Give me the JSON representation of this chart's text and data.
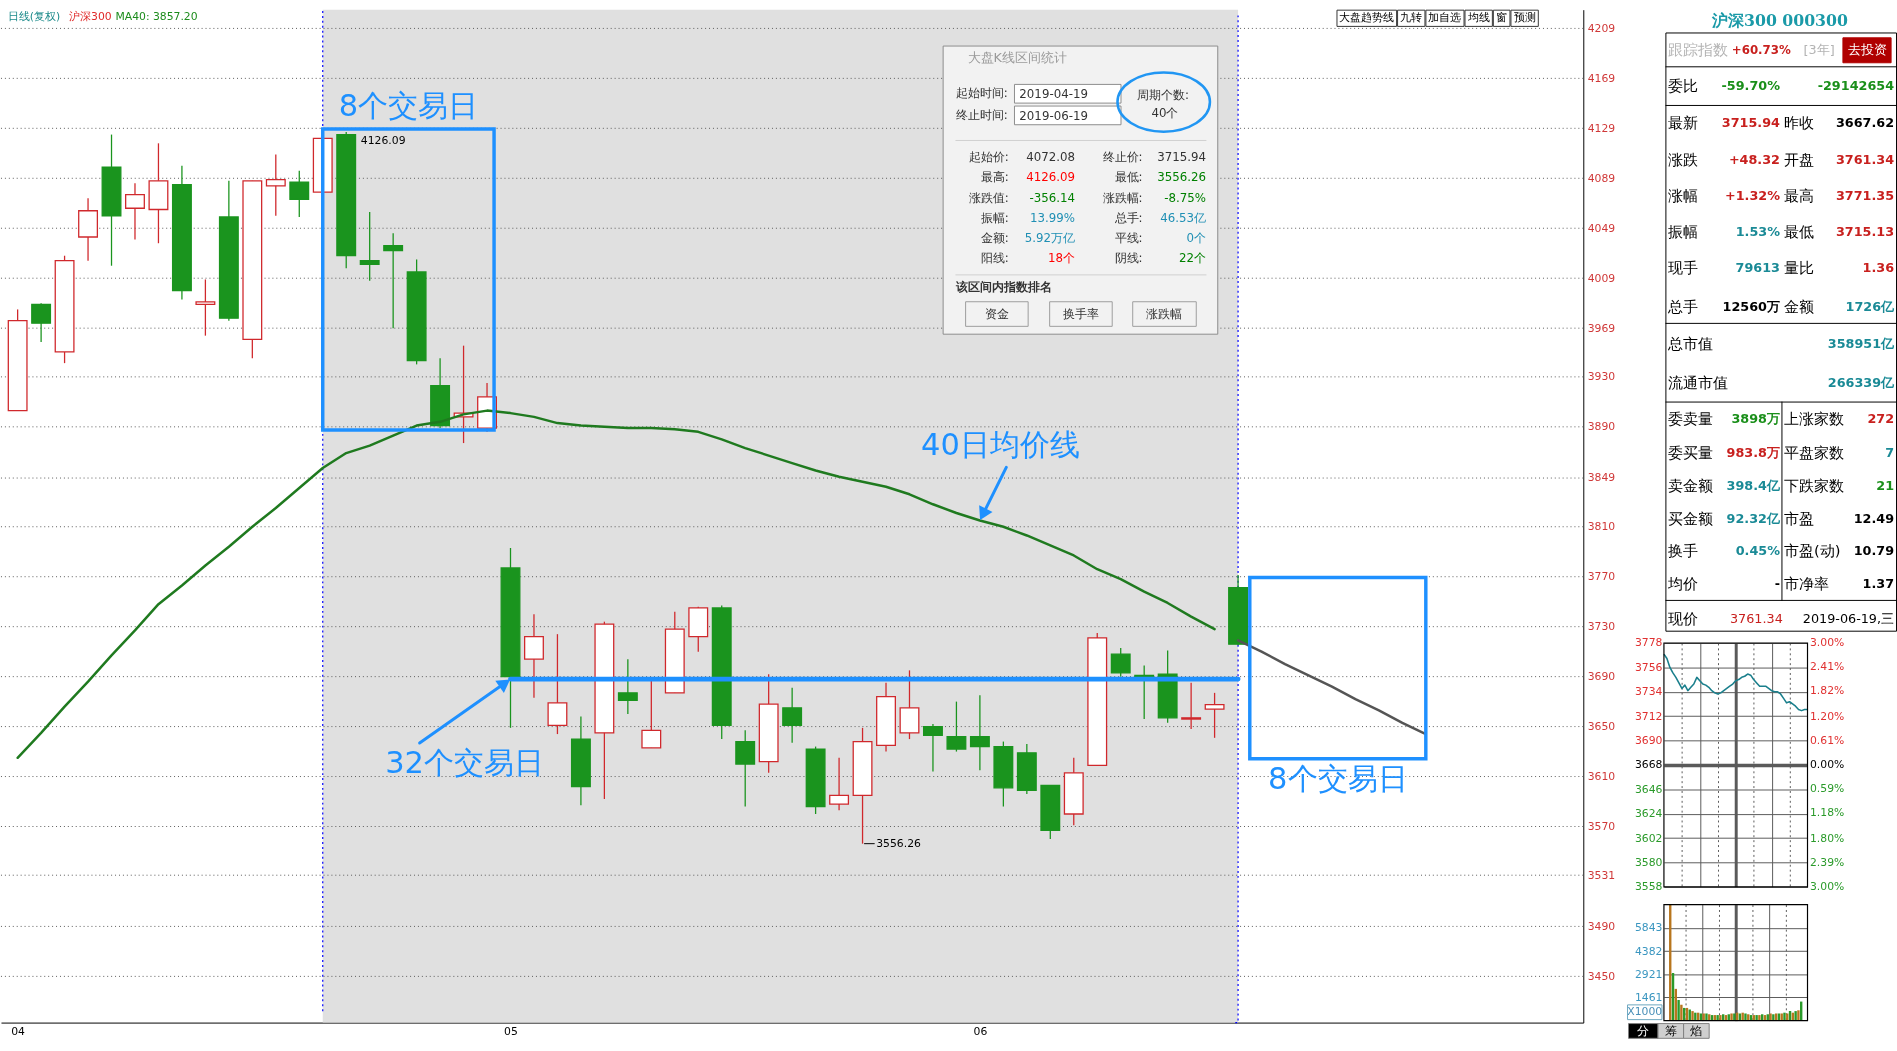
{
  "chart_data": [
    {
      "type": "candlestick",
      "title": "日线(复权)",
      "subtitle": "沪深300",
      "categories": [
        "04",
        null,
        null,
        null,
        null,
        null,
        null,
        null,
        null,
        null,
        null,
        null,
        null,
        null,
        null,
        null,
        null,
        null,
        null,
        null,
        null,
        "05",
        null,
        null,
        null,
        null,
        null,
        null,
        null,
        null,
        null,
        null,
        null,
        null,
        null,
        null,
        null,
        null,
        null,
        null,
        null,
        "06",
        null,
        null,
        null,
        null,
        null,
        null,
        null,
        null,
        null,
        null,
        null,
        null,
        null,
        null,
        null,
        null,
        null,
        null,
        null,
        null,
        null,
        null,
        null,
        null,
        null
      ],
      "ohlc": [
        [
          3903,
          3984,
          3903,
          3975
        ],
        [
          3988,
          3989,
          3958,
          3973
        ],
        [
          3950,
          4027,
          3941,
          4023
        ],
        [
          4042,
          4073,
          4023,
          4063
        ],
        [
          4098,
          4124,
          4019,
          4059
        ],
        [
          4065,
          4085,
          4040,
          4076
        ],
        [
          4064,
          4117,
          4037,
          4087
        ],
        [
          4084,
          4099,
          3992,
          3999
        ],
        [
          3988,
          4008,
          3963,
          3990
        ],
        [
          4058,
          4087,
          3975,
          3977
        ],
        [
          3960,
          4087,
          3945,
          4087
        ],
        [
          4083,
          4108,
          4059,
          4088
        ],
        [
          4086,
          4095,
          4058,
          4072.08
        ],
        [
          4078,
          4121,
          4078,
          4121
        ],
        [
          4124,
          4126.09,
          4017,
          4027
        ],
        [
          4023,
          4062,
          4007,
          4020
        ],
        [
          4035,
          4045,
          3969,
          4031
        ],
        [
          4014,
          4024,
          3940,
          3943
        ],
        [
          3923,
          3945,
          3889,
          3891
        ],
        [
          3898,
          3955,
          3877,
          3901
        ],
        [
          3889,
          3925,
          3886,
          3914
        ],
        [
          3777,
          3793,
          3649,
          3690
        ],
        [
          3704,
          3740,
          3673,
          3722
        ],
        [
          3651,
          3724,
          3644,
          3669
        ],
        [
          3640,
          3658,
          3587,
          3602
        ],
        [
          3645,
          3734,
          3592,
          3732
        ],
        [
          3677,
          3704,
          3660,
          3671
        ],
        [
          3633,
          3688,
          3633,
          3647
        ],
        [
          3677,
          3742,
          3677,
          3728
        ],
        [
          3722,
          3746,
          3710,
          3745
        ],
        [
          3745,
          3747,
          3640,
          3651
        ],
        [
          3638,
          3647,
          3586,
          3620
        ],
        [
          3622,
          3692,
          3613,
          3668
        ],
        [
          3665,
          3681,
          3637,
          3651
        ],
        [
          3632,
          3634,
          3580,
          3586
        ],
        [
          3588,
          3625,
          3583,
          3595
        ],
        [
          3595,
          3649,
          3556.26,
          3638
        ],
        [
          3635,
          3685,
          3630,
          3674
        ],
        [
          3645,
          3695,
          3640,
          3665
        ],
        [
          3650,
          3652,
          3614,
          3643
        ],
        [
          3642,
          3670,
          3630,
          3632
        ],
        [
          3642,
          3675,
          3615,
          3634
        ],
        [
          3634,
          3638,
          3586,
          3601
        ],
        [
          3629,
          3636,
          3596,
          3599
        ],
        [
          3603,
          3603,
          3560,
          3567
        ],
        [
          3580,
          3625,
          3571,
          3613
        ],
        [
          3619,
          3725,
          3619,
          3721
        ],
        [
          3708,
          3713,
          3690,
          3693
        ],
        [
          3691,
          3699,
          3656,
          3690
        ],
        [
          3692,
          3711,
          3653,
          3657
        ],
        [
          3656,
          3685,
          3648,
          3657
        ],
        [
          3664,
          3677,
          3641,
          3667.62
        ],
        [
          3761.34,
          3771.35,
          3715.13,
          3715.94
        ],
        null,
        null,
        null,
        null,
        null,
        null,
        null,
        null,
        null,
        null,
        null,
        null,
        null,
        null
      ],
      "colors": [
        "#d0282c",
        "#1a941e",
        "#d0282c",
        "#d0282c",
        "#1a941e",
        "#d0282c",
        "#d0282c",
        "#1a941e",
        "#d0282c",
        "#1a941e",
        "#d0282c",
        "#d0282c",
        "#1a941e",
        "#d0282c",
        "#1a941e",
        "#1a941e",
        "#1a941e",
        "#1a941e",
        "#1a941e",
        "#d0282c",
        "#d0282c",
        "#1a941e",
        "#d0282c",
        "#d0282c",
        "#1a941e",
        "#d0282c",
        "#1a941e",
        "#d0282c",
        "#d0282c",
        "#d0282c",
        "#1a941e",
        "#1a941e",
        "#d0282c",
        "#1a941e",
        "#1a941e",
        "#d0282c",
        "#d0282c",
        "#d0282c",
        "#d0282c",
        "#1a941e",
        "#1a941e",
        "#1a941e",
        "#1a941e",
        "#1a941e",
        "#1a941e",
        "#d0282c",
        "#d0282c",
        "#1a941e",
        "#1a941e",
        "#1a941e",
        "#d0282c",
        "#d0282c",
        "#1a941e",
        null,
        null,
        null,
        null,
        null,
        null,
        null,
        null,
        null,
        null,
        null,
        null,
        null,
        null
      ],
      "series": [
        {
          "type": "line",
          "color": "#1f7a1f",
          "values": [
            3625,
            3645,
            3666,
            3686,
            3707,
            3727,
            3748,
            3763,
            3779,
            3794,
            3810,
            3825,
            3841,
            3857,
            3869,
            3875,
            3883,
            3891,
            3894,
            3900,
            3903,
            3901,
            3898,
            3893,
            3891,
            3890,
            3889,
            3889,
            3888,
            3886,
            3880,
            3873,
            3867,
            3861,
            3855,
            3850,
            3846,
            3842,
            3836,
            3828,
            3821,
            3815,
            3810,
            3803,
            3795,
            3787,
            3776,
            3768,
            3758,
            3749,
            3738,
            3728,
            null,
            null,
            null,
            null,
            null,
            null,
            null,
            null,
            null,
            null,
            null,
            null,
            null,
            null,
            null
          ]
        },
        {
          "type": "line",
          "color": "#555555",
          "values": [
            null,
            null,
            null,
            null,
            null,
            null,
            null,
            null,
            null,
            null,
            null,
            null,
            null,
            null,
            null,
            null,
            null,
            null,
            null,
            null,
            null,
            null,
            null,
            null,
            null,
            null,
            null,
            null,
            null,
            null,
            null,
            null,
            null,
            null,
            null,
            null,
            null,
            null,
            null,
            null,
            null,
            null,
            null,
            null,
            null,
            null,
            null,
            null,
            null,
            null,
            null,
            null,
            3719,
            3710,
            3700,
            3691,
            3682,
            3672,
            3663,
            3653,
            3644,
            null,
            null,
            null,
            null,
            null,
            null
          ]
        },
        {
          "type": "line",
          "color": "#1e90ff",
          "values": [
            null,
            null,
            null,
            null,
            null,
            null,
            null,
            null,
            null,
            null,
            null,
            null,
            null,
            null,
            null,
            null,
            null,
            null,
            null,
            null,
            null,
            3688,
            3688,
            3688,
            3688,
            3688,
            3688,
            3688,
            3688,
            3688,
            3688,
            3688,
            3688,
            3688,
            3688,
            3688,
            3688,
            3688,
            3688,
            3688,
            3688,
            3688,
            3688,
            3688,
            3688,
            3688,
            3688,
            3688,
            3688,
            3688,
            3688,
            3688,
            3688,
            null,
            null,
            null,
            null,
            null,
            null,
            null,
            null,
            null,
            null,
            null,
            null,
            null,
            null
          ]
        }
      ],
      "ylim": [
        3413,
        4224
      ],
      "yticks": [
        3450,
        3490,
        3531,
        3570,
        3610,
        3650,
        3690,
        3730,
        3770,
        3810,
        3849,
        3890,
        3930,
        3969,
        4009,
        4049,
        4089,
        4129,
        4169,
        4209
      ],
      "grid": "y",
      "annotations": [
        "8个交易日",
        {
          "text": "32个交易日",
          "x": "05",
          "y": 3688
        },
        {
          "text": "40日均价线",
          "x": "06",
          "y": 3815
        },
        "8个交易日",
        "4126.09",
        "3556.26",
        "MA40: 3857.20",
        "大盘趋势线",
        "九转",
        "加自选",
        "均线",
        "窗",
        "预测"
      ]
    },
    {
      "type": "other",
      "title": "大盘K线区间统计",
      "annotations": [
        "起始时间:",
        "2019-04-19",
        "终止时间:",
        "2019-06-19",
        "周期个数:",
        "40个",
        "起始价:",
        "4072.08",
        "终止价:",
        "3715.94",
        "最高:",
        "4126.09",
        "最低:",
        "3556.26",
        "涨跌值:",
        "-356.14",
        "涨跌幅:",
        "-8.75%",
        "振幅:",
        "13.99%",
        "总手:",
        "46.53亿",
        "金额:",
        "5.92万亿",
        "平线:",
        "0个",
        "阳线:",
        "18个",
        "阴线:",
        "22个",
        "该区间内指数排名",
        "资金",
        "换手率",
        "涨跌幅"
      ]
    },
    {
      "type": "other",
      "title": "沪深300 000300",
      "annotations": [
        "跟踪指数",
        "+60.73%",
        "[3年]",
        "去投资",
        "委比",
        "-59.70%",
        "-29142654",
        "最新",
        "3715.94",
        "昨收",
        "3667.62",
        "涨跌",
        "+48.32",
        "开盘",
        "3761.34",
        "涨幅",
        "+1.32%",
        "最高",
        "3771.35",
        "振幅",
        "1.53%",
        "最低",
        "3715.13",
        "现手",
        "79613",
        "量比",
        "1.36",
        "总手",
        "12560万",
        "金额",
        "1726亿",
        "总市值",
        "358951亿",
        "流通市值",
        "266339亿",
        "委卖量",
        "3898万",
        "上涨家数",
        "272",
        "委买量",
        "983.8万",
        "平盘家数",
        "7",
        "卖金额",
        "398.4亿",
        "下跌家数",
        "21",
        "买金额",
        "92.32亿",
        "市盈",
        "12.49",
        "换手",
        "0.45%",
        "市盈(动)",
        "10.79",
        "均价",
        "-",
        "市净率",
        "1.37",
        "现价",
        "3761.34",
        "2019-06-19,三"
      ]
    },
    {
      "type": "line",
      "categories": [
        null,
        null,
        null,
        null,
        null,
        null,
        null,
        null,
        null,
        null,
        null,
        null,
        null,
        null,
        null,
        null,
        null,
        null,
        null,
        null,
        null,
        null,
        null,
        null,
        null,
        null,
        null,
        null,
        null,
        null,
        null,
        null,
        null,
        null,
        null,
        null,
        null,
        null,
        null,
        null,
        null,
        null,
        null,
        null,
        null,
        null,
        null,
        null,
        null
      ],
      "series": [
        {
          "color": "#1a7f8c",
          "values": [
            3768,
            3764,
            3756,
            3751,
            3747,
            3742,
            3737,
            3740,
            3735,
            3738,
            3741,
            3747,
            3744,
            3741,
            3740,
            3738,
            3735,
            3733,
            3732,
            3733,
            3735,
            3737,
            3739,
            3741,
            3744,
            3745,
            3747,
            3748,
            3750,
            3749,
            3745,
            3742,
            3739,
            3739,
            3739,
            3737,
            3735,
            3734,
            3734,
            3732,
            3728,
            3724,
            3725,
            3723,
            3721,
            3718,
            3717,
            3718,
            3718
          ]
        }
      ],
      "ylim": [
        3558,
        3778
      ],
      "yticks": [
        3558,
        3580,
        3602,
        3624,
        3646,
        3668,
        3690,
        3712,
        3734,
        3756,
        3778
      ],
      "y2lim": [
        -3,
        3
      ],
      "y2ticks": [
        {
          "value": -3,
          "label": "3.00%"
        },
        {
          "value": -2.39,
          "label": "2.39%"
        },
        {
          "value": -1.8,
          "label": "1.80%"
        },
        {
          "value": -1.18,
          "label": "1.18%"
        },
        {
          "value": -0.59,
          "label": "0.59%"
        },
        {
          "value": 0,
          "label": "0.00%"
        },
        {
          "value": 0.61,
          "label": "0.61%"
        },
        {
          "value": 1.2,
          "label": "1.20%"
        },
        {
          "value": 1.82,
          "label": "1.82%"
        },
        {
          "value": 2.41,
          "label": "2.41%"
        },
        {
          "value": 3,
          "label": "3.00%"
        }
      ],
      "grid": true
    },
    {
      "type": "bar",
      "categories": [
        null,
        null,
        null,
        null,
        null,
        null,
        null,
        null,
        null,
        null,
        null,
        null,
        null,
        null,
        null,
        null,
        null,
        null,
        null,
        null,
        null,
        null,
        null,
        null,
        null,
        null,
        null,
        null,
        null,
        null,
        null,
        null,
        null,
        null,
        null,
        null,
        null,
        null,
        null,
        null,
        null,
        null,
        null,
        null,
        null,
        null,
        null,
        null
      ],
      "values": [
        7300,
        3000,
        2000,
        1300,
        1000,
        800,
        800,
        700,
        600,
        500,
        500,
        450,
        450,
        450,
        400,
        350,
        350,
        350,
        350,
        400,
        350,
        400,
        450,
        450,
        500,
        450,
        500,
        450,
        400,
        350,
        350,
        350,
        350,
        400,
        350,
        400,
        450,
        400,
        450,
        450,
        450,
        500,
        450,
        600,
        500,
        600,
        650,
        1200
      ],
      "colors": [
        "#b8761e",
        "#2a9a2a",
        "#b8761e",
        "#2a9a2a",
        "#b8761e",
        "#2a9a2a",
        "#b8761e",
        "#2a9a2a",
        "#b8761e",
        "#2a9a2a",
        "#b8761e",
        "#2a9a2a",
        "#b8761e",
        "#2a9a2a",
        "#b8761e",
        "#2a9a2a",
        "#b8761e",
        "#2a9a2a",
        "#b8761e",
        "#2a9a2a",
        "#b8761e",
        "#2a9a2a",
        "#b8761e",
        "#2a9a2a",
        "#b8761e",
        "#2a9a2a",
        "#b8761e",
        "#2a9a2a",
        "#b8761e",
        "#2a9a2a",
        "#b8761e",
        "#2a9a2a",
        "#b8761e",
        "#2a9a2a",
        "#b8761e",
        "#2a9a2a",
        "#b8761e",
        "#2a9a2a",
        "#b8761e",
        "#2a9a2a",
        "#b8761e",
        "#2a9a2a",
        "#b8761e",
        "#2a9a2a",
        "#b8761e",
        "#2a9a2a",
        "#b8761e",
        "#2a9a2a"
      ],
      "ylim": [
        0,
        7310
      ],
      "yticks": [
        1461,
        2921,
        4382,
        5843
      ],
      "grid": true,
      "annotations": [
        "X1000",
        "分",
        "筹",
        "焰"
      ]
    }
  ]
}
